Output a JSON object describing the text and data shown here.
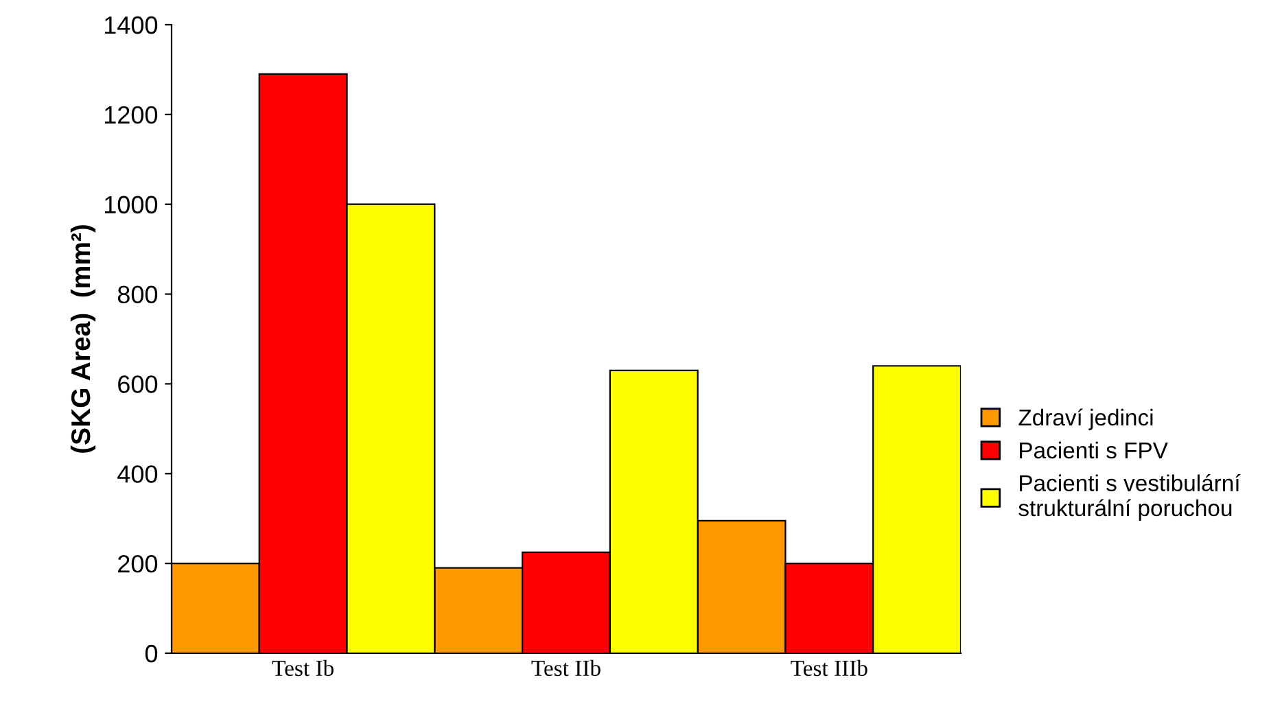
{
  "chart_data": {
    "type": "bar",
    "ylabel": "(SKG Area)  (mm²)",
    "categories": [
      "Test Ib",
      "Test IIb",
      "Test IIIb"
    ],
    "series": [
      {
        "name": "Zdraví jedinci",
        "color": "#ff9900",
        "values": [
          200,
          190,
          295
        ]
      },
      {
        "name": "Pacienti s FPV",
        "color": "#ff0000",
        "values": [
          1290,
          225,
          200
        ]
      },
      {
        "name": "Pacienti s vestibulární\nstrukturální poruchou",
        "color": "#ffff00",
        "values": [
          1000,
          630,
          640
        ]
      }
    ],
    "ylim": [
      0,
      1400
    ],
    "yticks": [
      0,
      200,
      400,
      600,
      800,
      1000,
      1200,
      1400
    ],
    "grid": false,
    "legend": "right"
  }
}
